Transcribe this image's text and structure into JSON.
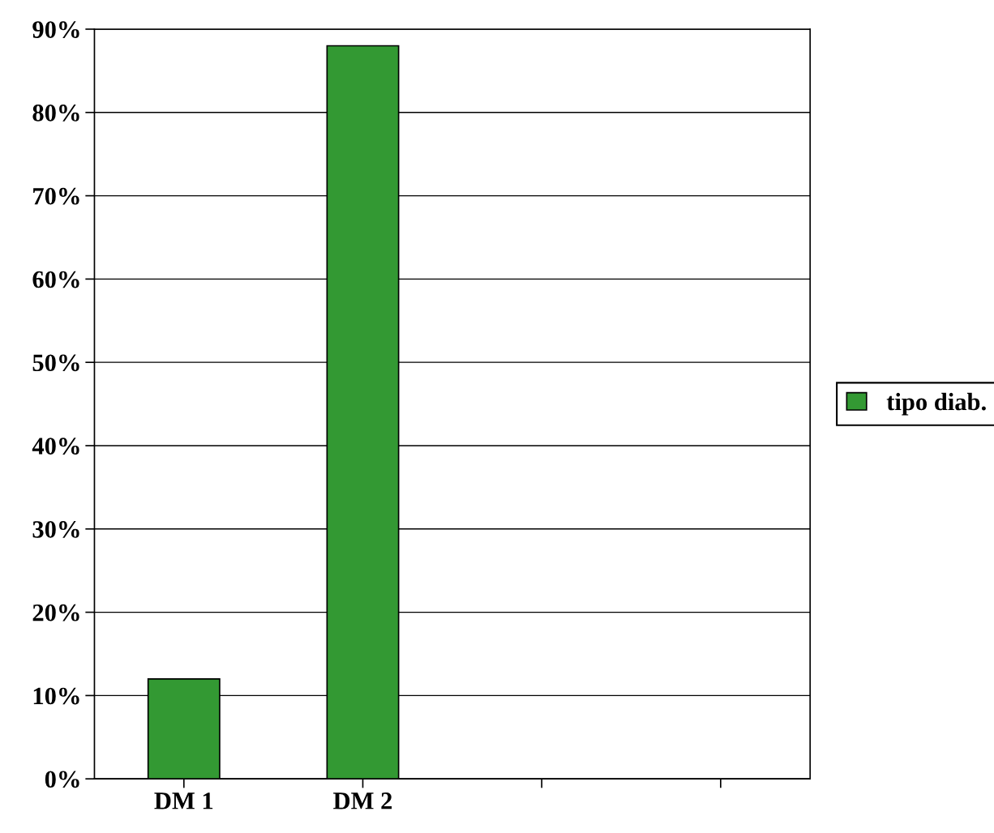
{
  "chart_data": {
    "type": "bar",
    "categories": [
      "DM 1",
      "DM 2",
      null,
      null
    ],
    "series": [
      {
        "name": "tipo diab.",
        "color": "#339933",
        "values": [
          12,
          88,
          null,
          null
        ]
      }
    ],
    "ylim": [
      0,
      90
    ],
    "yticks": [
      {
        "value": 0,
        "label": "0%"
      },
      {
        "value": 10,
        "label": "10%"
      },
      {
        "value": 20,
        "label": "20%"
      },
      {
        "value": 30,
        "label": "30%"
      },
      {
        "value": 40,
        "label": "40%"
      },
      {
        "value": 50,
        "label": "50%"
      },
      {
        "value": 60,
        "label": "60%"
      },
      {
        "value": 70,
        "label": "70%"
      },
      {
        "value": 80,
        "label": "80%"
      },
      {
        "value": 90,
        "label": "90%"
      }
    ],
    "grid": "y",
    "legend": "right"
  }
}
